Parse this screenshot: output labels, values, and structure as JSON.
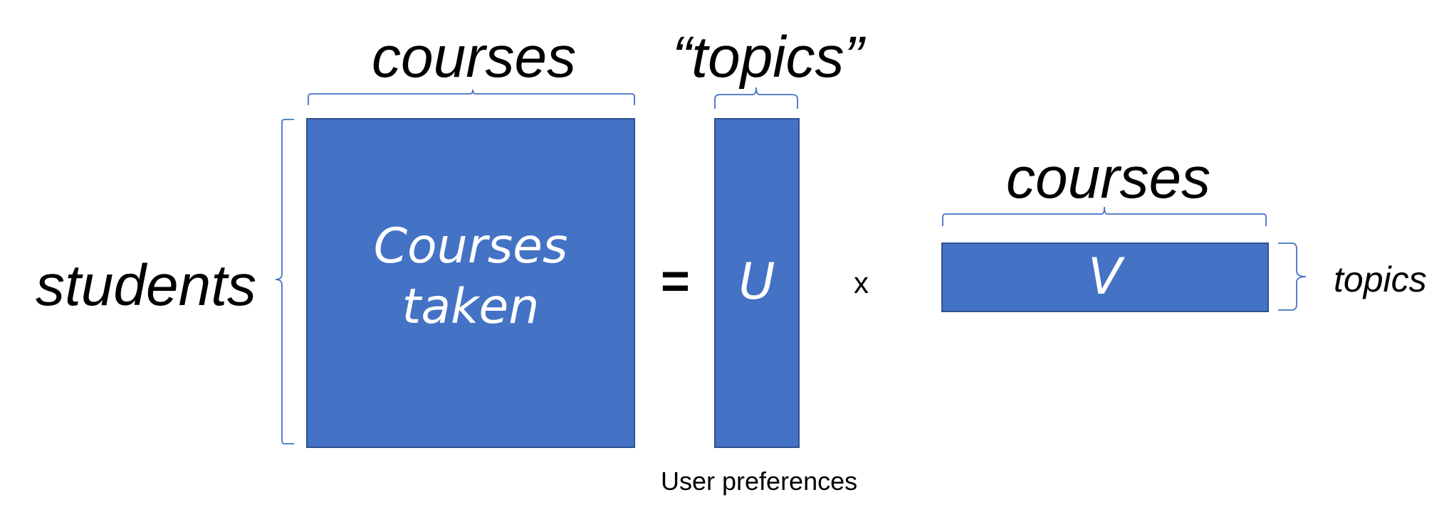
{
  "diagram": {
    "left_matrix": {
      "text_line1": "Courses",
      "text_line2": "taken"
    },
    "left_matrix_top_label": "courses",
    "left_matrix_side_label": "students",
    "equals_symbol": "=",
    "u_matrix": {
      "text": "U",
      "top_label": "“topics”",
      "caption": "User preferences"
    },
    "times_symbol": "x",
    "v_matrix": {
      "text": "V",
      "top_label": "courses",
      "side_label": "topics"
    }
  },
  "colors": {
    "matrix_fill": "#4472C4",
    "matrix_border": "#2F528F",
    "brace": "#4472C4"
  }
}
